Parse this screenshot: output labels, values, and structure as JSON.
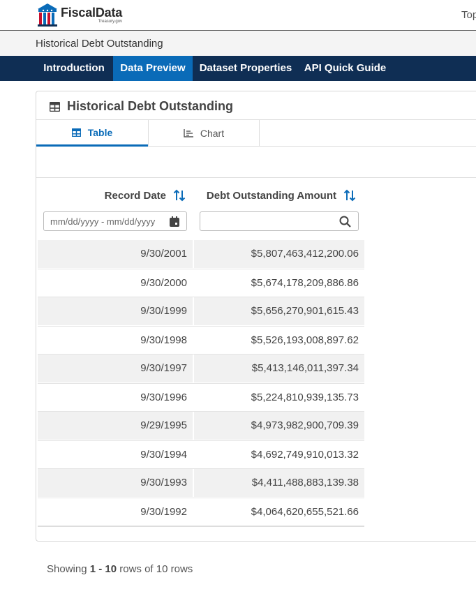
{
  "header": {
    "logo_title": "FiscalData",
    "logo_sub": "Treasury.gov",
    "top_link": "Top"
  },
  "breadcrumb": "Historical Debt Outstanding",
  "tabs": [
    {
      "label": "Introduction"
    },
    {
      "label": "Data Preview"
    },
    {
      "label": "Dataset Properties"
    },
    {
      "label": "API Quick Guide"
    }
  ],
  "card": {
    "title": "Historical Debt Outstanding",
    "view_tabs": {
      "table": "Table",
      "chart": "Chart"
    }
  },
  "table": {
    "columns": [
      "Record Date",
      "Debt Outstanding Amount"
    ],
    "date_filter_placeholder": "mm/dd/yyyy - mm/dd/yyyy",
    "amount_filter_placeholder": "",
    "rows": [
      {
        "date": "9/30/2001",
        "amount": "$5,807,463,412,200.06"
      },
      {
        "date": "9/30/2000",
        "amount": "$5,674,178,209,886.86"
      },
      {
        "date": "9/30/1999",
        "amount": "$5,656,270,901,615.43"
      },
      {
        "date": "9/30/1998",
        "amount": "$5,526,193,008,897.62"
      },
      {
        "date": "9/30/1997",
        "amount": "$5,413,146,011,397.34"
      },
      {
        "date": "9/30/1996",
        "amount": "$5,224,810,939,135.73"
      },
      {
        "date": "9/29/1995",
        "amount": "$4,973,982,900,709.39"
      },
      {
        "date": "9/30/1994",
        "amount": "$4,692,749,910,013.32"
      },
      {
        "date": "9/30/1993",
        "amount": "$4,411,488,883,139.38"
      },
      {
        "date": "9/30/1992",
        "amount": "$4,064,620,655,521.66"
      }
    ]
  },
  "footer": {
    "prefix": "Showing ",
    "range": "1 - 10",
    "suffix": " rows of 10 rows"
  },
  "colors": {
    "nav_bg": "#0f2e54",
    "accent": "#0a6bb8",
    "stripe": "#f1f1f1"
  }
}
